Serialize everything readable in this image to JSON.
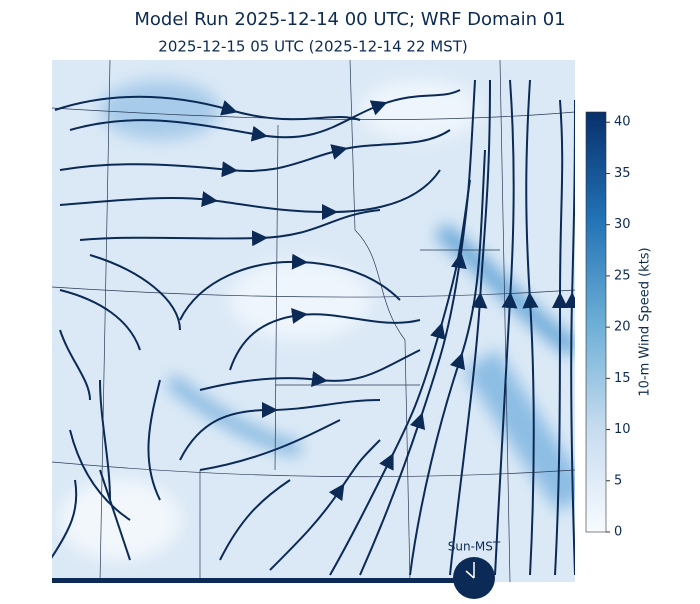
{
  "title": "Model Run 2025-12-14 00 UTC; WRF Domain 01",
  "subtitle": "2025-12-15 05 UTC  (2025-12-14 22 MST)",
  "colorbar": {
    "label": "10-m Wind Speed (kts)",
    "lim": [
      0,
      41
    ],
    "ticks": [
      0,
      5,
      10,
      15,
      20,
      25,
      30,
      35,
      40
    ]
  },
  "clock": {
    "label": "Sun-MST"
  }
}
